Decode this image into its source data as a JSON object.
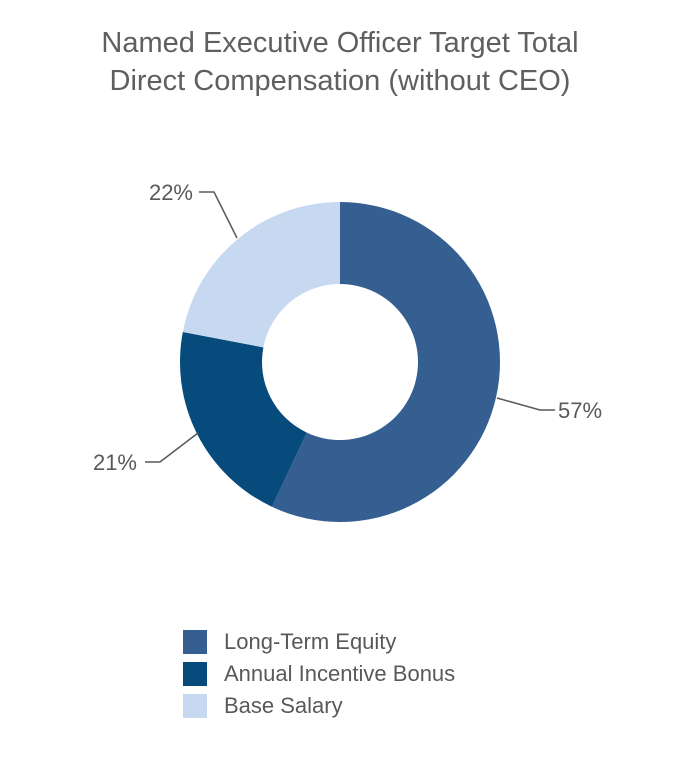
{
  "chart_data": {
    "type": "pie",
    "variant": "donut",
    "title_lines": [
      "Named Executive Officer Target Total",
      "Direct Compensation (without CEO)"
    ],
    "title": "Named Executive Officer Target Total Direct Compensation (without CEO)",
    "categories": [
      "Long-Term Equity",
      "Annual Incentive Bonus",
      "Base Salary"
    ],
    "values": [
      57,
      21,
      22
    ],
    "labels": [
      "57%",
      "21%",
      "22%"
    ],
    "colors": [
      "#365f91",
      "#074a7c",
      "#c6d9f1"
    ],
    "legend_position": "bottom"
  }
}
